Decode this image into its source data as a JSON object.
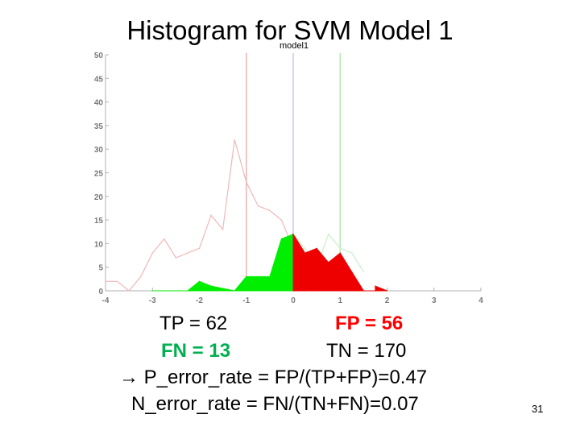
{
  "slide": {
    "title": "Histogram for SVM Model 1",
    "page_number": "31"
  },
  "stats": {
    "tp": "TP = 62",
    "fp": "FP = 56",
    "fn": "FN = 13",
    "tn": "TN = 170",
    "p_error_arrow": "→",
    "p_error": "P_error_rate = FP/(TP+FP)=0.47",
    "n_error": "N_error_rate = FN/(TN+FN)=0.07"
  },
  "chart_data": {
    "type": "area",
    "title": "model1",
    "xlim": [
      -4,
      4
    ],
    "ylim": [
      0,
      50
    ],
    "x_ticks": [
      -4,
      -3,
      -2,
      -1,
      0,
      1,
      2,
      3,
      4
    ],
    "y_ticks": [
      0,
      5,
      10,
      15,
      20,
      25,
      30,
      35,
      40,
      45,
      50
    ],
    "grid": false,
    "vlines": [
      {
        "x": -1,
        "color": "#e8b4b4"
      },
      {
        "x": 0,
        "color": "#c8c8e6"
      },
      {
        "x": 1,
        "color": "#b4e6b4"
      }
    ],
    "series": [
      {
        "fill": false,
        "color": "#f0b8b8",
        "x": [
          -4,
          -3.75,
          -3.5,
          -3.25,
          -3,
          -2.75,
          -2.5,
          -2.25,
          -2,
          -1.75,
          -1.5,
          -1.25,
          -1,
          -0.75,
          -0.5,
          -0.25,
          0,
          0.25,
          0.5,
          0.75,
          1
        ],
        "values": [
          2,
          2,
          0,
          3,
          8,
          11,
          7,
          8,
          9,
          16,
          13,
          32,
          23,
          18,
          17,
          15,
          9,
          0,
          4,
          1,
          0
        ]
      },
      {
        "fill": false,
        "color": "#c8f0c8",
        "x": [
          0,
          0.25,
          0.5,
          0.75,
          1,
          1.25,
          1.5
        ],
        "values": [
          12,
          9,
          5,
          12,
          9,
          8,
          4
        ]
      },
      {
        "fill": true,
        "color": "#00ee00",
        "x": [
          -3,
          -2.25,
          -2,
          -1.75,
          -1.25,
          -1,
          -0.75,
          -0.5,
          -0.25,
          0,
          0
        ],
        "values": [
          0,
          0,
          2,
          1,
          0,
          3,
          3,
          3,
          11,
          12,
          0
        ]
      },
      {
        "fill": true,
        "color": "#ee0000",
        "x": [
          0,
          0,
          0.25,
          0.5,
          0.75,
          1,
          1.25,
          1.5,
          1.75,
          1.75,
          2
        ],
        "values": [
          0,
          12,
          8,
          9,
          6,
          8,
          4,
          0,
          0,
          1,
          0
        ]
      }
    ]
  }
}
